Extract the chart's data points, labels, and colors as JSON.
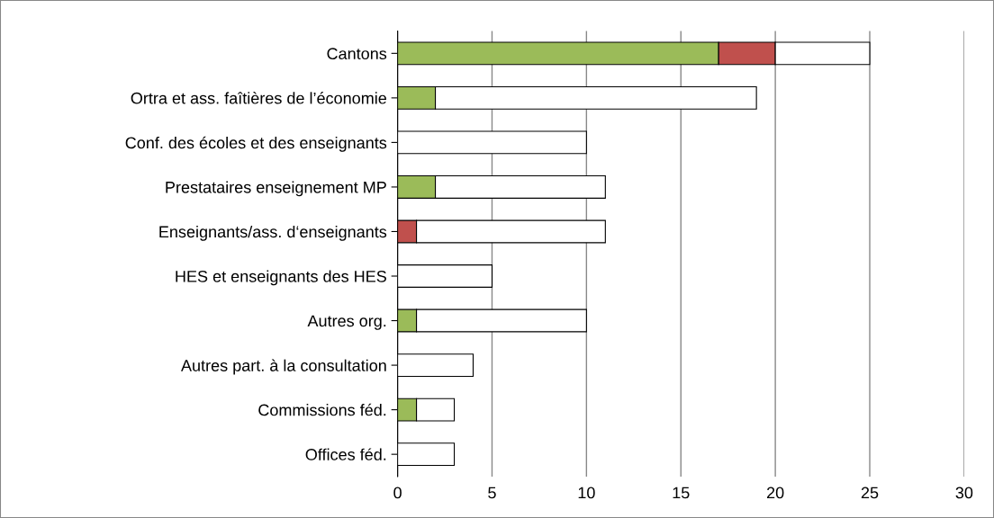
{
  "chart_data": {
    "type": "bar",
    "orientation": "horizontal",
    "stacked": true,
    "categories": [
      "Cantons",
      "Ortra et ass. faîtières de l’économie",
      "Conf. des écoles et des enseignants",
      "Prestataires enseignement MP",
      "Enseignants/ass. d‘enseignants",
      "HES et enseignants des HES",
      "Autres org.",
      "Autres part. à la consultation",
      "Commissions féd.",
      "Offices féd."
    ],
    "series": [
      {
        "color": "#9bbb59",
        "values": [
          17,
          2,
          0,
          2,
          0,
          0,
          1,
          0,
          1,
          0
        ]
      },
      {
        "color": "#c0504d",
        "values": [
          3,
          0,
          0,
          0,
          1,
          0,
          0,
          0,
          0,
          0
        ]
      },
      {
        "color": "#ffffff",
        "values": [
          5,
          17,
          10,
          9,
          10,
          5,
          9,
          4,
          2,
          3
        ]
      }
    ],
    "xlim": [
      0,
      30
    ],
    "xticks": [
      0,
      5,
      10,
      15,
      20,
      25,
      30
    ],
    "grid": "x",
    "legend": false
  }
}
